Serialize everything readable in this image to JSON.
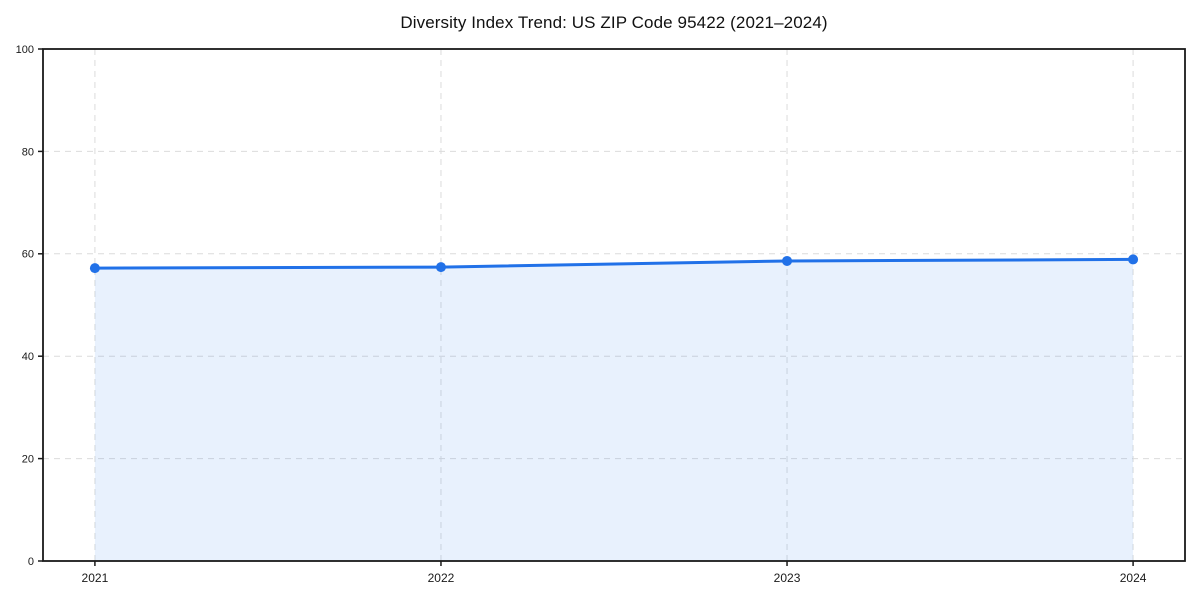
{
  "chart_data": {
    "type": "line",
    "title": "Diversity Index Trend: US ZIP Code 95422 (2021–2024)",
    "x": [
      2021,
      2022,
      2023,
      2024
    ],
    "series": [
      {
        "name": "Diversity Index",
        "values": [
          57.2,
          57.4,
          58.6,
          58.9
        ]
      }
    ],
    "xlabel": "",
    "ylabel": "",
    "ylim": [
      0,
      100
    ],
    "yticks": [
      0,
      20,
      40,
      60,
      80,
      100
    ],
    "x_margin_fraction": 0.05,
    "grid": "dashed",
    "legend_position": "none",
    "area_fill": true,
    "marker": "circle",
    "colors": {
      "line": "#2171e8",
      "marker": "#2171e8",
      "fill": "rgba(33,113,232,0.10)",
      "grid": "#dcdcdc",
      "frame": "#1a1a1a",
      "text": "#1a1a1a",
      "background": "#ffffff"
    }
  }
}
